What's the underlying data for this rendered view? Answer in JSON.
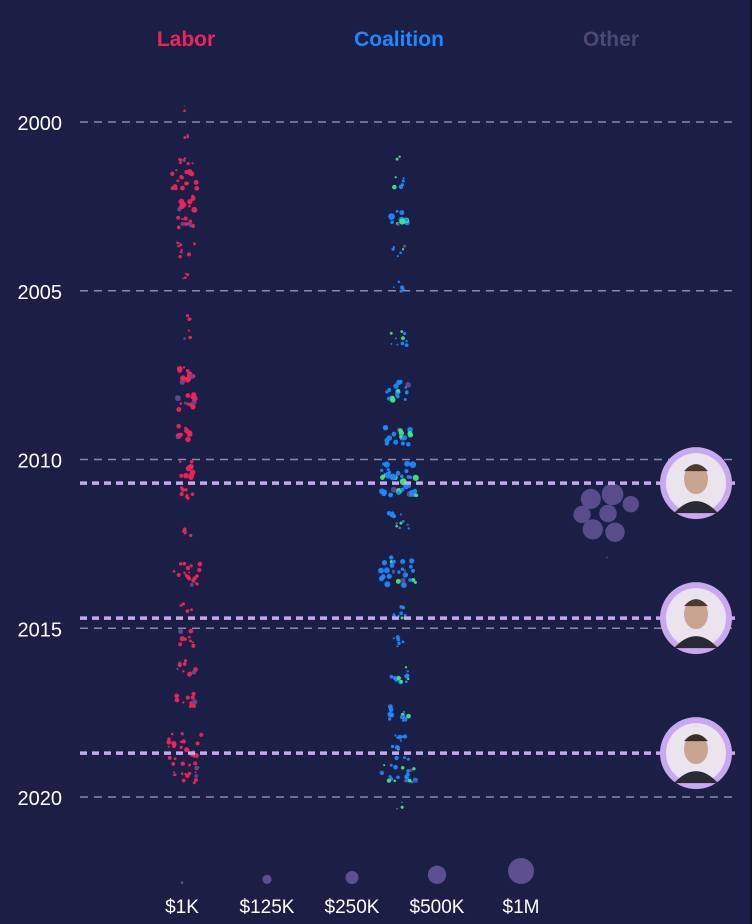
{
  "columns": [
    {
      "key": "labor",
      "label": "Labor",
      "color": "#f0245a"
    },
    {
      "key": "coalition",
      "label": "Coalition",
      "color": "#1e88ff"
    },
    {
      "key": "other",
      "label": "Other",
      "color": "#4d4776"
    }
  ],
  "colors": {
    "background": "#1b1e45",
    "labor": "#f0245a",
    "coalition": "#1e88ff",
    "coalition_alt": "#3ee87a",
    "other": "#5c4f8f",
    "gridline": "#8a88ad",
    "premier_line": "#c9a8f0"
  },
  "chart_data": {
    "type": "scatter",
    "title": "",
    "xlabel": "",
    "ylabel": "",
    "y_axis": {
      "ticks": [
        2000,
        2005,
        2010,
        2015,
        2020
      ],
      "ylim": [
        1998.0,
        2021.5
      ]
    },
    "grid": true,
    "premier_changes": [
      2010.7,
      2014.7,
      2018.7
    ],
    "size_legend": {
      "labels": [
        "$1K",
        "$125K",
        "$250K",
        "$500K",
        "$1M"
      ],
      "values": [
        1000,
        125000,
        250000,
        500000,
        1000000
      ]
    },
    "series": [
      {
        "name": "Labor",
        "column": "labor",
        "clusters": [
          {
            "year": 1999.6,
            "count": 2,
            "amount": 3000
          },
          {
            "year": 2000.4,
            "count": 3,
            "amount": 5000
          },
          {
            "year": 2001.2,
            "count": 8,
            "amount": 12000
          },
          {
            "year": 2001.7,
            "count": 20,
            "amount": 30000
          },
          {
            "year": 2002.4,
            "count": 10,
            "amount": 45000
          },
          {
            "year": 2003.0,
            "count": 10,
            "amount": 25000
          },
          {
            "year": 2003.8,
            "count": 10,
            "amount": 18000
          },
          {
            "year": 2004.5,
            "count": 4,
            "amount": 8000
          },
          {
            "year": 2005.7,
            "count": 3,
            "amount": 20000
          },
          {
            "year": 2006.3,
            "count": 3,
            "amount": 20000
          },
          {
            "year": 2007.5,
            "count": 12,
            "amount": 40000
          },
          {
            "year": 2008.3,
            "count": 12,
            "amount": 40000
          },
          {
            "year": 2009.2,
            "count": 10,
            "amount": 50000
          },
          {
            "year": 2010.3,
            "count": 12,
            "amount": 40000
          },
          {
            "year": 2011.0,
            "count": 8,
            "amount": 25000
          },
          {
            "year": 2012.2,
            "count": 6,
            "amount": 35000
          },
          {
            "year": 2013.4,
            "count": 20,
            "amount": 25000
          },
          {
            "year": 2014.4,
            "count": 5,
            "amount": 20000
          },
          {
            "year": 2015.3,
            "count": 10,
            "amount": 30000
          },
          {
            "year": 2016.2,
            "count": 12,
            "amount": 30000
          },
          {
            "year": 2017.1,
            "count": 12,
            "amount": 35000
          },
          {
            "year": 2018.5,
            "count": 26,
            "amount": 30000
          },
          {
            "year": 2019.3,
            "count": 18,
            "amount": 25000
          }
        ]
      },
      {
        "name": "Coalition",
        "column": "coalition",
        "clusters": [
          {
            "year": 2001.1,
            "count": 2,
            "amount": 4000
          },
          {
            "year": 2001.8,
            "count": 6,
            "amount": 25000
          },
          {
            "year": 2002.8,
            "count": 12,
            "amount": 60000
          },
          {
            "year": 2003.8,
            "count": 6,
            "amount": 20000
          },
          {
            "year": 2004.9,
            "count": 5,
            "amount": 20000
          },
          {
            "year": 2006.4,
            "count": 10,
            "amount": 20000
          },
          {
            "year": 2008.0,
            "count": 18,
            "amount": 35000
          },
          {
            "year": 2009.3,
            "count": 20,
            "amount": 40000
          },
          {
            "year": 2010.6,
            "count": 40,
            "amount": 55000
          },
          {
            "year": 2011.8,
            "count": 14,
            "amount": 30000
          },
          {
            "year": 2013.3,
            "count": 30,
            "amount": 40000
          },
          {
            "year": 2014.5,
            "count": 8,
            "amount": 25000
          },
          {
            "year": 2015.4,
            "count": 6,
            "amount": 20000
          },
          {
            "year": 2016.4,
            "count": 12,
            "amount": 30000
          },
          {
            "year": 2017.5,
            "count": 12,
            "amount": 30000
          },
          {
            "year": 2018.4,
            "count": 10,
            "amount": 25000
          },
          {
            "year": 2019.2,
            "count": 26,
            "amount": 30000
          },
          {
            "year": 2020.3,
            "count": 3,
            "amount": 4000
          }
        ]
      },
      {
        "name": "Other",
        "column": "other",
        "clusters": [
          {
            "year": 2011.6,
            "count": 7,
            "amount": 700000
          },
          {
            "year": 2012.9,
            "count": 1,
            "amount": 2000
          }
        ]
      }
    ]
  }
}
